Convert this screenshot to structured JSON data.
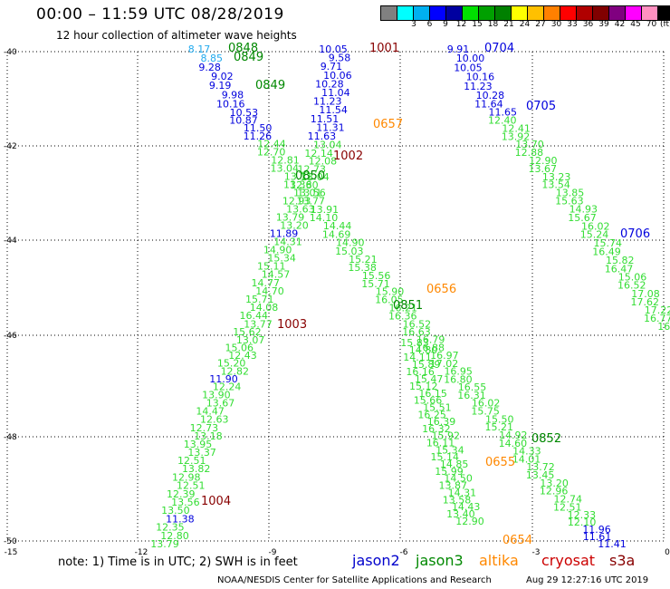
{
  "header": {
    "title": "00:00 – 11:59 UTC 08/28/2019",
    "subtitle": "12 hour collection of altimeter wave heights"
  },
  "legend": {
    "colors": [
      "#808080",
      "#00ffff",
      "#00b0f0",
      "#0000ff",
      "#0000a0",
      "#00e000",
      "#00a000",
      "#008000",
      "#ffff00",
      "#ffc000",
      "#ff8000",
      "#ff0000",
      "#b00000",
      "#800000",
      "#800080",
      "#ff00ff",
      "#ff90c0",
      "#000000"
    ],
    "labels": [
      "3",
      "6",
      "9",
      "12",
      "15",
      "18",
      "21",
      "24",
      "27",
      "30",
      "33",
      "36",
      "39",
      "42",
      "45",
      "70"
    ],
    "unit": "(ft)"
  },
  "axes": {
    "lat_labels": [
      "-40",
      "-42",
      "-44",
      "-46",
      "-48",
      "-50"
    ],
    "lon_labels": [
      "-15",
      "-12",
      "-9",
      "-6",
      "-3",
      "0"
    ]
  },
  "satellites": [
    {
      "name": "jason2",
      "color": "#0000cc"
    },
    {
      "name": "jason3",
      "color": "#008800"
    },
    {
      "name": "altika",
      "color": "#ff8800"
    },
    {
      "name": "cryosat",
      "color": "#cc0000"
    },
    {
      "name": "s3a",
      "color": "#880000"
    }
  ],
  "footer": {
    "note": "note:  1) Time is in UTC;  2) SWH is in feet",
    "credit": "NOAA/NESDIS Center for Satellite Applications and Research",
    "timestamp": "Aug 29 12:27:16 UTC 2019"
  },
  "colors": {
    "light_green": "#33dd33",
    "green": "#008800",
    "blue": "#0000dd",
    "cyan": "#22aaee",
    "dark_red": "#880000",
    "orange": "#ff8800"
  },
  "tracks": [
    {
      "name": "track-a",
      "labels": [
        {
          "t": "8.17",
          "c": "cyan"
        },
        {
          "t": "8.85",
          "c": "cyan"
        },
        {
          "t": "9.28",
          "c": "blue"
        },
        {
          "t": "9.02",
          "c": "blue"
        },
        {
          "t": "9.19",
          "c": "blue"
        },
        {
          "t": "9.98",
          "c": "blue"
        },
        {
          "t": "10.16",
          "c": "blue"
        },
        {
          "t": "10.53",
          "c": "blue"
        },
        {
          "t": "10.87",
          "c": "blue"
        },
        {
          "t": "11.50",
          "c": "blue"
        },
        {
          "t": "11.26",
          "c": "blue"
        },
        {
          "t": "12.44",
          "c": "light_green"
        },
        {
          "t": "12.70",
          "c": "light_green"
        },
        {
          "t": "12.81",
          "c": "light_green"
        },
        {
          "t": "13.04",
          "c": "light_green"
        },
        {
          "t": "13.11",
          "c": "light_green"
        },
        {
          "t": "13.36",
          "c": "light_green"
        },
        {
          "t": "13.56",
          "c": "light_green"
        },
        {
          "t": "13.77",
          "c": "light_green"
        },
        {
          "t": "13.91",
          "c": "light_green"
        },
        {
          "t": "14.10",
          "c": "light_green"
        },
        {
          "t": "14.44",
          "c": "light_green"
        },
        {
          "t": "14.69",
          "c": "light_green"
        },
        {
          "t": "14.90",
          "c": "light_green"
        },
        {
          "t": "15.03",
          "c": "light_green"
        },
        {
          "t": "15.21",
          "c": "light_green"
        },
        {
          "t": "15.38",
          "c": "light_green"
        },
        {
          "t": "15.56",
          "c": "light_green"
        },
        {
          "t": "15.71",
          "c": "light_green"
        },
        {
          "t": "15.90",
          "c": "light_green"
        },
        {
          "t": "16.05",
          "c": "light_green"
        },
        {
          "t": "16.21",
          "c": "light_green"
        },
        {
          "t": "16.36",
          "c": "light_green"
        },
        {
          "t": "16.52",
          "c": "light_green"
        },
        {
          "t": "16.63",
          "c": "light_green"
        },
        {
          "t": "16.79",
          "c": "light_green"
        },
        {
          "t": "16.88",
          "c": "light_green"
        },
        {
          "t": "16.97",
          "c": "light_green"
        },
        {
          "t": "17.02",
          "c": "light_green"
        },
        {
          "t": "16.95",
          "c": "light_green"
        },
        {
          "t": "16.80",
          "c": "light_green"
        },
        {
          "t": "16.55",
          "c": "light_green"
        },
        {
          "t": "16.31",
          "c": "light_green"
        },
        {
          "t": "16.02",
          "c": "light_green"
        },
        {
          "t": "15.75",
          "c": "light_green"
        },
        {
          "t": "15.50",
          "c": "light_green"
        },
        {
          "t": "15.21",
          "c": "light_green"
        },
        {
          "t": "14.92",
          "c": "light_green"
        },
        {
          "t": "14.60",
          "c": "light_green"
        },
        {
          "t": "14.33",
          "c": "light_green"
        },
        {
          "t": "14.01",
          "c": "light_green"
        },
        {
          "t": "13.72",
          "c": "light_green"
        },
        {
          "t": "13.45",
          "c": "light_green"
        },
        {
          "t": "13.20",
          "c": "light_green"
        },
        {
          "t": "12.96",
          "c": "light_green"
        },
        {
          "t": "12.74",
          "c": "light_green"
        },
        {
          "t": "12.51",
          "c": "light_green"
        },
        {
          "t": "12.33",
          "c": "light_green"
        },
        {
          "t": "12.10",
          "c": "light_green"
        },
        {
          "t": "11.96",
          "c": "blue"
        },
        {
          "t": "11.61",
          "c": "blue"
        },
        {
          "t": "11.41",
          "c": "blue"
        }
      ]
    },
    {
      "name": "track-b",
      "labels": [
        {
          "t": "10.05",
          "c": "blue"
        },
        {
          "t": "9.58",
          "c": "blue"
        },
        {
          "t": "9.71",
          "c": "blue"
        },
        {
          "t": "10.06",
          "c": "blue"
        },
        {
          "t": "10.28",
          "c": "blue"
        },
        {
          "t": "11.04",
          "c": "blue"
        },
        {
          "t": "11.23",
          "c": "blue"
        },
        {
          "t": "11.54",
          "c": "blue"
        },
        {
          "t": "11.51",
          "c": "blue"
        },
        {
          "t": "11.31",
          "c": "blue"
        },
        {
          "t": "11.63",
          "c": "blue"
        },
        {
          "t": "13.04",
          "c": "light_green"
        },
        {
          "t": "12.14",
          "c": "light_green"
        },
        {
          "t": "12.08",
          "c": "light_green"
        },
        {
          "t": "12.73",
          "c": "light_green"
        },
        {
          "t": "13.04",
          "c": "light_green"
        },
        {
          "t": "12.80",
          "c": "light_green"
        },
        {
          "t": "13.01",
          "c": "light_green"
        },
        {
          "t": "12.93",
          "c": "light_green"
        },
        {
          "t": "13.63",
          "c": "light_green"
        },
        {
          "t": "13.79",
          "c": "light_green"
        },
        {
          "t": "13.20",
          "c": "light_green"
        },
        {
          "t": "11.89",
          "c": "blue"
        },
        {
          "t": "14.31",
          "c": "light_green"
        },
        {
          "t": "14.90",
          "c": "light_green"
        },
        {
          "t": "15.34",
          "c": "light_green"
        },
        {
          "t": "15.11",
          "c": "light_green"
        },
        {
          "t": "14.57",
          "c": "light_green"
        },
        {
          "t": "14.77",
          "c": "light_green"
        },
        {
          "t": "14.70",
          "c": "light_green"
        },
        {
          "t": "15.71",
          "c": "light_green"
        },
        {
          "t": "14.08",
          "c": "light_green"
        },
        {
          "t": "16.44",
          "c": "light_green"
        },
        {
          "t": "13.77",
          "c": "light_green"
        },
        {
          "t": "15.62",
          "c": "light_green"
        },
        {
          "t": "13.07",
          "c": "light_green"
        },
        {
          "t": "15.06",
          "c": "light_green"
        },
        {
          "t": "12.43",
          "c": "light_green"
        },
        {
          "t": "15.20",
          "c": "light_green"
        },
        {
          "t": "12.82",
          "c": "light_green"
        },
        {
          "t": "11.90",
          "c": "blue"
        },
        {
          "t": "12.24",
          "c": "light_green"
        },
        {
          "t": "13.90",
          "c": "light_green"
        },
        {
          "t": "13.67",
          "c": "light_green"
        },
        {
          "t": "14.47",
          "c": "light_green"
        },
        {
          "t": "12.63",
          "c": "light_green"
        },
        {
          "t": "12.73",
          "c": "light_green"
        },
        {
          "t": "13.18",
          "c": "light_green"
        },
        {
          "t": "13.95",
          "c": "light_green"
        },
        {
          "t": "13.37",
          "c": "light_green"
        },
        {
          "t": "12.51",
          "c": "light_green"
        },
        {
          "t": "13.82",
          "c": "light_green"
        },
        {
          "t": "12.98",
          "c": "light_green"
        },
        {
          "t": "12.51",
          "c": "light_green"
        },
        {
          "t": "12.39",
          "c": "light_green"
        },
        {
          "t": "13.56",
          "c": "light_green"
        },
        {
          "t": "13.50",
          "c": "light_green"
        },
        {
          "t": "11.38",
          "c": "blue"
        },
        {
          "t": "12.35",
          "c": "light_green"
        },
        {
          "t": "12.80",
          "c": "light_green"
        },
        {
          "t": "13.79",
          "c": "light_green"
        }
      ]
    },
    {
      "name": "track-c",
      "labels": [
        {
          "t": "9.91",
          "c": "blue"
        },
        {
          "t": "10.00",
          "c": "blue"
        },
        {
          "t": "10.05",
          "c": "blue"
        },
        {
          "t": "10.16",
          "c": "blue"
        },
        {
          "t": "11.23",
          "c": "blue"
        },
        {
          "t": "10.28",
          "c": "blue"
        },
        {
          "t": "11.64",
          "c": "blue"
        },
        {
          "t": "11.65",
          "c": "blue"
        },
        {
          "t": "12.40",
          "c": "light_green"
        },
        {
          "t": "12.41",
          "c": "light_green"
        },
        {
          "t": "13.92",
          "c": "light_green"
        },
        {
          "t": "13.70",
          "c": "light_green"
        },
        {
          "t": "12.88",
          "c": "light_green"
        },
        {
          "t": "12.90",
          "c": "light_green"
        },
        {
          "t": "13.67",
          "c": "light_green"
        },
        {
          "t": "13.23",
          "c": "light_green"
        },
        {
          "t": "13.54",
          "c": "light_green"
        },
        {
          "t": "13.85",
          "c": "light_green"
        },
        {
          "t": "15.63",
          "c": "light_green"
        },
        {
          "t": "14.93",
          "c": "light_green"
        },
        {
          "t": "15.67",
          "c": "light_green"
        },
        {
          "t": "16.02",
          "c": "light_green"
        },
        {
          "t": "15.24",
          "c": "light_green"
        },
        {
          "t": "15.74",
          "c": "light_green"
        },
        {
          "t": "16.49",
          "c": "light_green"
        },
        {
          "t": "15.82",
          "c": "light_green"
        },
        {
          "t": "16.47",
          "c": "light_green"
        },
        {
          "t": "15.06",
          "c": "light_green"
        },
        {
          "t": "16.52",
          "c": "light_green"
        },
        {
          "t": "17.08",
          "c": "light_green"
        },
        {
          "t": "17.62",
          "c": "light_green"
        },
        {
          "t": "17.22",
          "c": "light_green"
        },
        {
          "t": "16.77",
          "c": "light_green"
        },
        {
          "t": "16.31",
          "c": "light_green"
        }
      ]
    },
    {
      "name": "track-d",
      "labels": [
        {
          "t": "15.83",
          "c": "light_green"
        },
        {
          "t": "14.80",
          "c": "light_green"
        },
        {
          "t": "14.11",
          "c": "light_green"
        },
        {
          "t": "15.89",
          "c": "light_green"
        },
        {
          "t": "16.16",
          "c": "light_green"
        },
        {
          "t": "15.47",
          "c": "light_green"
        },
        {
          "t": "15.12",
          "c": "light_green"
        },
        {
          "t": "16.15",
          "c": "light_green"
        },
        {
          "t": "15.66",
          "c": "light_green"
        },
        {
          "t": "15.51",
          "c": "light_green"
        },
        {
          "t": "16.25",
          "c": "light_green"
        },
        {
          "t": "16.39",
          "c": "light_green"
        },
        {
          "t": "16.32",
          "c": "light_green"
        },
        {
          "t": "15.92",
          "c": "light_green"
        },
        {
          "t": "16.11",
          "c": "light_green"
        },
        {
          "t": "15.34",
          "c": "light_green"
        },
        {
          "t": "15.14",
          "c": "light_green"
        },
        {
          "t": "14.85",
          "c": "light_green"
        },
        {
          "t": "15.99",
          "c": "light_green"
        },
        {
          "t": "14.50",
          "c": "light_green"
        },
        {
          "t": "13.87",
          "c": "light_green"
        },
        {
          "t": "14.31",
          "c": "light_green"
        },
        {
          "t": "13.58",
          "c": "light_green"
        },
        {
          "t": "14.43",
          "c": "light_green"
        },
        {
          "t": "13.40",
          "c": "light_green"
        },
        {
          "t": "12.90",
          "c": "light_green"
        }
      ]
    }
  ],
  "time_labels": [
    {
      "t": "0848",
      "c": "green"
    },
    {
      "t": "0849",
      "c": "green"
    },
    {
      "t": "0849",
      "c": "green"
    },
    {
      "t": "1001",
      "c": "dark_red"
    },
    {
      "t": "0704",
      "c": "blue"
    },
    {
      "t": "0705",
      "c": "blue"
    },
    {
      "t": "0657",
      "c": "orange"
    },
    {
      "t": "1002",
      "c": "dark_red"
    },
    {
      "t": "0850",
      "c": "green"
    },
    {
      "t": "0706",
      "c": "blue"
    },
    {
      "t": "0656",
      "c": "orange"
    },
    {
      "t": "0851",
      "c": "green"
    },
    {
      "t": "1003",
      "c": "dark_red"
    },
    {
      "t": "0852",
      "c": "green"
    },
    {
      "t": "0655",
      "c": "orange"
    },
    {
      "t": "1004",
      "c": "dark_red"
    },
    {
      "t": "0654",
      "c": "orange"
    }
  ]
}
